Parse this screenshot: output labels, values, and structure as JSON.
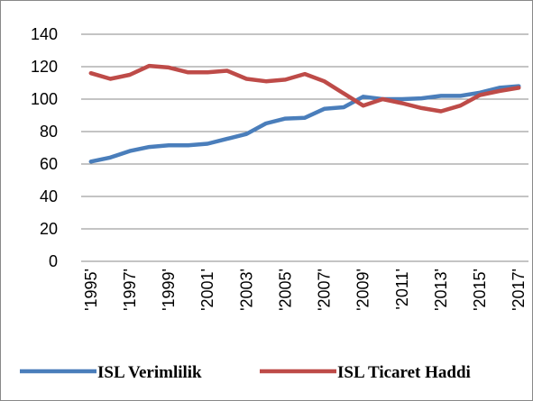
{
  "chart_data": {
    "type": "line",
    "categories": [
      "'1995'",
      null,
      "'1997'",
      null,
      "'1999'",
      null,
      "'2001'",
      null,
      "'2003'",
      null,
      "'2005'",
      null,
      "'2007'",
      null,
      "'2009'",
      null,
      "'2011'",
      null,
      "'2013'",
      null,
      "'2015'",
      null,
      "'2017'"
    ],
    "series": [
      {
        "name": "ISL Verimlilik",
        "color": "#4a7ebb",
        "values": [
          61.5,
          64,
          68,
          70.5,
          71.5,
          71.5,
          72.5,
          75.5,
          78.5,
          85,
          88,
          88.5,
          94,
          95,
          101.5,
          100,
          100,
          100.5,
          102,
          102,
          104,
          107,
          108
        ]
      },
      {
        "name": "ISL Ticaret Haddi",
        "color": "#be4b48",
        "values": [
          116,
          112.5,
          115,
          120.5,
          119.5,
          116.5,
          116.5,
          117.5,
          112.5,
          111,
          112,
          115.5,
          111,
          103.5,
          96,
          100,
          97.5,
          94.5,
          92.5,
          96,
          102.5,
          105,
          107
        ]
      }
    ],
    "ylim": [
      0,
      140
    ],
    "yticks": [
      0,
      20,
      40,
      60,
      80,
      100,
      120,
      140
    ],
    "grid": true,
    "legend": "bottom"
  }
}
